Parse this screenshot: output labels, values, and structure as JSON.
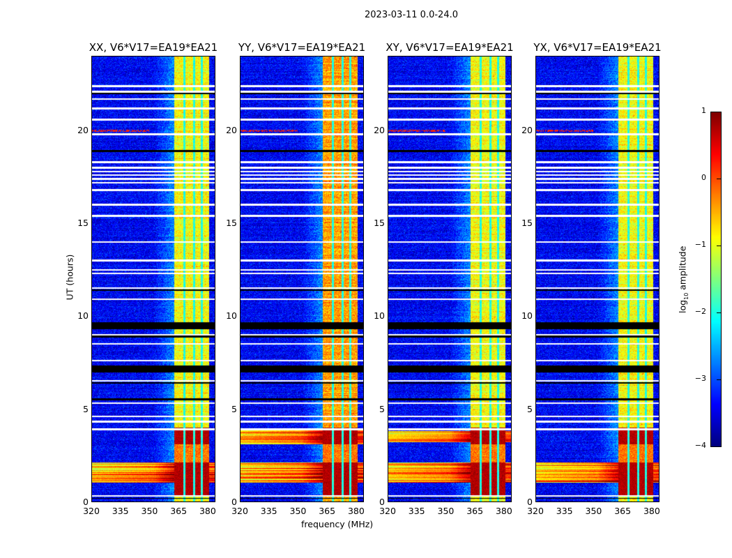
{
  "chart_data": {
    "type": "heatmap",
    "title": "2023-03-11 0.0-24.0",
    "xlabel": "frequency (MHz)",
    "ylabel": "UT (hours)",
    "xlim": [
      320,
      384
    ],
    "ylim": [
      0,
      24
    ],
    "xticks": [
      320,
      335,
      350,
      365,
      380
    ],
    "yticks": [
      0,
      5,
      10,
      15,
      20
    ],
    "panels": [
      {
        "title": "XX, V6*V17=EA19*EA21",
        "band_level": -0.9,
        "rfi_hours": [
          [
            1.0,
            2.1
          ]
        ]
      },
      {
        "title": "YY, V6*V17=EA19*EA21",
        "band_level": -0.4,
        "rfi_hours": [
          [
            1.0,
            2.1
          ],
          [
            3.1,
            3.9
          ]
        ]
      },
      {
        "title": "XY, V6*V17=EA19*EA21",
        "band_level": -0.9,
        "rfi_hours": [
          [
            1.0,
            2.1
          ],
          [
            3.2,
            3.8
          ]
        ]
      },
      {
        "title": "YX, V6*V17=EA19*EA21",
        "band_level": -0.9,
        "rfi_hours": [
          [
            1.0,
            2.1
          ]
        ]
      }
    ],
    "strong_band_mhz": [
      363,
      381
    ],
    "strong_hours": [
      0.3,
      4.0
    ],
    "background_level": -3.4,
    "flagged_white_hours": [
      0.3,
      3.9,
      4.3,
      4.6,
      5.3,
      6.5,
      7.6,
      8.5,
      9.0,
      10.9,
      11.5,
      12.3,
      12.5,
      13.0,
      14.0,
      15.4,
      16.0,
      16.8,
      17.2,
      17.4,
      17.6,
      17.8,
      18.0,
      18.3,
      19.8,
      20.6,
      21.2,
      21.7,
      22.1,
      22.4
    ],
    "flagged_black_hours": [
      [
        0.15,
        0.2
      ],
      [
        5.45,
        5.55
      ],
      [
        6.35,
        6.45
      ],
      [
        6.95,
        7.35
      ],
      [
        8.85,
        8.95
      ],
      [
        9.3,
        9.65
      ],
      [
        11.35,
        11.45
      ],
      [
        18.85,
        18.95
      ],
      [
        21.95,
        22.05
      ]
    ],
    "colorbar": {
      "label": "log",
      "label_sub": "10",
      "label_suffix": " amplitude",
      "range": [
        -4,
        1
      ],
      "ticks": [
        "1",
        "0",
        "−1",
        "−2",
        "−3",
        "−4"
      ],
      "tick_values": [
        1,
        0,
        -1,
        -2,
        -3,
        -4
      ],
      "colormap": "jet"
    }
  }
}
